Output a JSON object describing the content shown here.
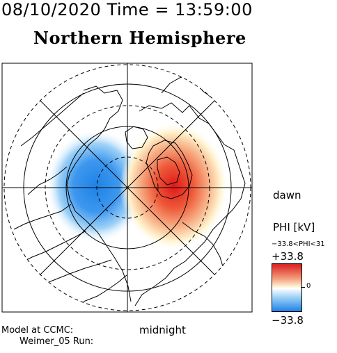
{
  "header": {
    "timestamp": "08/10/2020 Time = 13:59:00",
    "title": "Northern Hemisphere"
  },
  "map": {
    "projection": "polar stereographic, north pole centered",
    "orientation_labels": {
      "right": "dawn",
      "bottom": "midnight"
    },
    "features": [
      "coastlines",
      "latitude-circles",
      "meridian-lines",
      "potential-contours"
    ],
    "potential_pattern": {
      "negative_cell_side": "left (dusk)",
      "positive_cell_side": "right (dawn)"
    }
  },
  "colorbar": {
    "title": "PHI [kV]",
    "range_text": "−33.8<PHI<31",
    "max_label": "+33.8",
    "min_label": "−33.8",
    "zero_label": "0",
    "colors": {
      "max": "#d92020",
      "mid": "#ffffff",
      "min": "#1e82e6"
    }
  },
  "footer": {
    "model_label": "Model at CCMC:",
    "run_label": "Weimer_05 Run:"
  }
}
